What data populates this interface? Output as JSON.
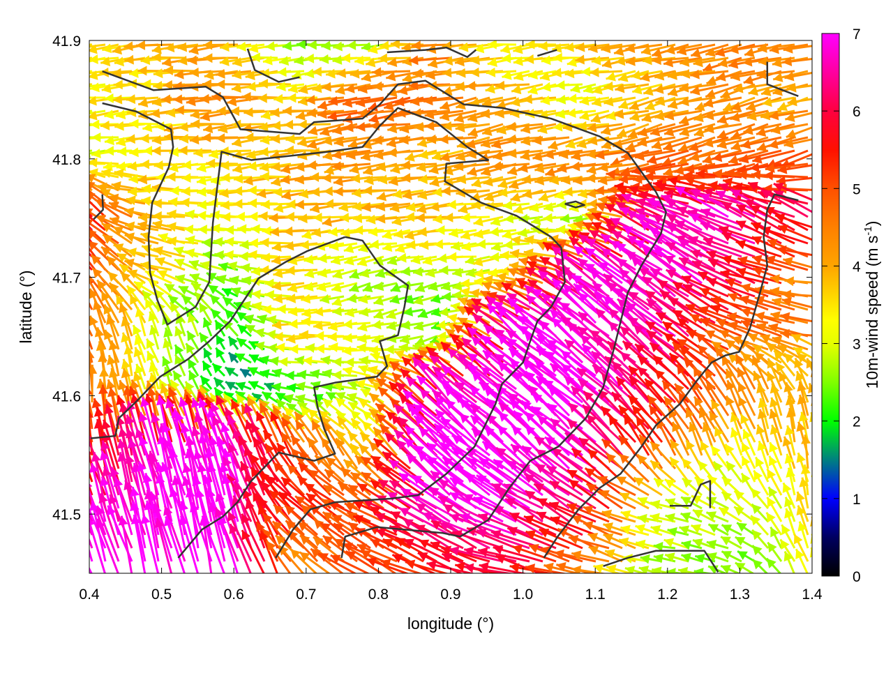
{
  "chart_data": {
    "type": "vector-field",
    "title": "",
    "xlabel": "longitude (°)",
    "ylabel": "latitude (°)",
    "xlim": [
      0.4,
      1.4
    ],
    "ylim": [
      41.45,
      41.9
    ],
    "xticks": [
      "0.4",
      "0.5",
      "0.6",
      "0.7",
      "0.8",
      "0.9",
      "1.0",
      "1.1",
      "1.2",
      "1.3",
      "1.4"
    ],
    "yticks": [
      "41.5",
      "41.6",
      "41.7",
      "41.8",
      "41.9"
    ],
    "colorbar": {
      "label": "10m-wind speed (m s",
      "label_superscript": "-1",
      "label_close": ")",
      "range": [
        0,
        7
      ],
      "ticks": [
        "0",
        "1",
        "2",
        "3",
        "4",
        "5",
        "6",
        "7"
      ],
      "colormap": [
        [
          0,
          "#000000"
        ],
        [
          0.5,
          "#000060"
        ],
        [
          1,
          "#0000ff"
        ],
        [
          1.5,
          "#008080"
        ],
        [
          2,
          "#00ff00"
        ],
        [
          2.5,
          "#80ff00"
        ],
        [
          3,
          "#e6ff00"
        ],
        [
          3.3,
          "#ffff00"
        ],
        [
          4,
          "#ffa500"
        ],
        [
          4.5,
          "#ff8000"
        ],
        [
          5,
          "#ff5000"
        ],
        [
          5.5,
          "#ff1000"
        ],
        [
          6,
          "#ff0040"
        ],
        [
          6.5,
          "#ff00a0"
        ],
        [
          7,
          "#ff00ff"
        ]
      ]
    },
    "wind_field": {
      "lon": [
        0.4,
        0.5,
        0.6,
        0.7,
        0.8,
        0.9,
        1.0,
        1.1,
        1.2,
        1.3,
        1.4
      ],
      "lat": [
        41.9,
        41.85,
        41.8,
        41.75,
        41.7,
        41.65,
        41.6,
        41.55,
        41.5,
        41.45
      ],
      "speed": [
        [
          3.5,
          3.8,
          4.0,
          2.5,
          2.5,
          4.5,
          3.0,
          3.8,
          4.0,
          4.5,
          4.5
        ],
        [
          3.3,
          3.5,
          4.5,
          3.5,
          5.0,
          4.5,
          4.0,
          3.0,
          3.8,
          4.2,
          4.0
        ],
        [
          3.0,
          3.5,
          3.5,
          4.0,
          4.2,
          3.8,
          4.5,
          4.3,
          4.8,
          4.7,
          5.0
        ],
        [
          6.0,
          4.0,
          3.0,
          3.8,
          3.8,
          3.8,
          3.0,
          2.8,
          6.5,
          6.8,
          6.2
        ],
        [
          5.5,
          3.8,
          2.5,
          3.5,
          2.5,
          2.5,
          3.5,
          6.5,
          7.0,
          6.5,
          4.5
        ],
        [
          5.0,
          3.0,
          2.2,
          3.5,
          3.3,
          2.5,
          7.0,
          7.0,
          6.8,
          5.0,
          4.5
        ],
        [
          4.5,
          2.8,
          1.5,
          2.0,
          3.0,
          6.5,
          7.0,
          7.0,
          6.0,
          4.5,
          4.0
        ],
        [
          5.0,
          6.8,
          7.0,
          5.0,
          3.5,
          7.0,
          7.0,
          7.0,
          5.0,
          3.5,
          3.8
        ],
        [
          6.5,
          7.0,
          7.0,
          5.5,
          5.0,
          7.0,
          7.0,
          6.0,
          3.0,
          3.0,
          3.5
        ],
        [
          7.0,
          7.0,
          7.0,
          4.5,
          5.0,
          5.5,
          6.0,
          4.5,
          2.5,
          2.5,
          3.5
        ]
      ],
      "direction_deg": [
        [
          185,
          185,
          185,
          185,
          185,
          185,
          185,
          185,
          190,
          190,
          190
        ],
        [
          185,
          185,
          185,
          185,
          190,
          190,
          190,
          190,
          195,
          195,
          195
        ],
        [
          185,
          185,
          185,
          185,
          190,
          190,
          190,
          190,
          195,
          195,
          195
        ],
        [
          135,
          175,
          180,
          185,
          185,
          185,
          190,
          190,
          155,
          155,
          155
        ],
        [
          125,
          160,
          160,
          185,
          200,
          190,
          185,
          145,
          145,
          155,
          170
        ],
        [
          110,
          110,
          120,
          180,
          185,
          200,
          140,
          140,
          140,
          160,
          170
        ],
        [
          95,
          110,
          150,
          170,
          160,
          135,
          140,
          140,
          135,
          120,
          110
        ],
        [
          100,
          105,
          110,
          120,
          130,
          135,
          140,
          140,
          120,
          110,
          100
        ],
        [
          110,
          105,
          105,
          140,
          150,
          145,
          150,
          150,
          170,
          150,
          100
        ],
        [
          110,
          105,
          105,
          130,
          150,
          160,
          165,
          165,
          170,
          160,
          110
        ]
      ]
    },
    "contour_lines": [
      [
        [
          0.418,
          41.874
        ],
        [
          0.489,
          41.858
        ],
        [
          0.561,
          41.861
        ],
        [
          0.585,
          41.852
        ],
        [
          0.609,
          41.825
        ],
        [
          0.691,
          41.821
        ],
        [
          0.711,
          41.831
        ],
        [
          0.778,
          41.834
        ],
        [
          0.802,
          41.846
        ],
        [
          0.827,
          41.863
        ],
        [
          0.865,
          41.866
        ],
        [
          0.918,
          41.846
        ],
        [
          0.971,
          41.843
        ],
        [
          1.039,
          41.834
        ],
        [
          1.106,
          41.819
        ],
        [
          1.145,
          41.805
        ],
        [
          1.184,
          41.772
        ],
        [
          1.198,
          41.755
        ],
        [
          1.191,
          41.737
        ],
        [
          1.164,
          41.71
        ],
        [
          1.145,
          41.687
        ],
        [
          1.126,
          41.64
        ],
        [
          1.111,
          41.607
        ],
        [
          1.087,
          41.581
        ],
        [
          1.049,
          41.557
        ],
        [
          1.01,
          41.545
        ],
        [
          0.981,
          41.522
        ],
        [
          0.952,
          41.495
        ],
        [
          0.913,
          41.481
        ],
        [
          0.889,
          41.484
        ],
        [
          0.798,
          41.489
        ],
        [
          0.754,
          41.481
        ],
        [
          0.749,
          41.463
        ]
      ],
      [
        [
          0.418,
          41.847
        ],
        [
          0.465,
          41.84
        ],
        [
          0.513,
          41.825
        ],
        [
          0.516,
          41.81
        ],
        [
          0.51,
          41.793
        ],
        [
          0.487,
          41.763
        ],
        [
          0.482,
          41.734
        ],
        [
          0.484,
          41.704
        ],
        [
          0.494,
          41.681
        ],
        [
          0.508,
          41.66
        ],
        [
          0.547,
          41.675
        ],
        [
          0.566,
          41.696
        ],
        [
          0.571,
          41.746
        ],
        [
          0.583,
          41.806
        ],
        [
          0.624,
          41.799
        ],
        [
          0.73,
          41.806
        ],
        [
          0.778,
          41.81
        ],
        [
          0.802,
          41.828
        ],
        [
          0.827,
          41.843
        ],
        [
          0.88,
          41.831
        ],
        [
          0.923,
          41.81
        ],
        [
          0.952,
          41.799
        ],
        [
          0.894,
          41.796
        ],
        [
          0.892,
          41.781
        ],
        [
          0.942,
          41.763
        ],
        [
          0.991,
          41.752
        ],
        [
          1.039,
          41.734
        ],
        [
          1.053,
          41.725
        ],
        [
          1.058,
          41.696
        ],
        [
          1.039,
          41.675
        ],
        [
          1.02,
          41.663
        ],
        [
          1.01,
          41.646
        ],
        [
          1.0,
          41.628
        ],
        [
          0.971,
          41.61
        ],
        [
          0.962,
          41.593
        ],
        [
          0.933,
          41.557
        ],
        [
          0.894,
          41.534
        ],
        [
          0.855,
          41.516
        ],
        [
          0.817,
          41.513
        ],
        [
          0.74,
          41.51
        ],
        [
          0.706,
          41.504
        ],
        [
          0.682,
          41.487
        ],
        [
          0.658,
          41.463
        ]
      ],
      [
        [
          0.754,
          41.734
        ],
        [
          0.701,
          41.722
        ],
        [
          0.672,
          41.713
        ],
        [
          0.634,
          41.699
        ],
        [
          0.595,
          41.663
        ],
        [
          0.566,
          41.646
        ],
        [
          0.537,
          41.631
        ],
        [
          0.498,
          41.616
        ],
        [
          0.465,
          41.595
        ],
        [
          0.441,
          41.581
        ],
        [
          0.436,
          41.566
        ],
        [
          0.402,
          41.564
        ]
      ],
      [
        [
          0.754,
          41.734
        ],
        [
          0.778,
          41.731
        ],
        [
          0.802,
          41.71
        ],
        [
          0.841,
          41.693
        ],
        [
          0.836,
          41.675
        ],
        [
          0.827,
          41.651
        ],
        [
          0.802,
          41.646
        ],
        [
          0.812,
          41.625
        ],
        [
          0.798,
          41.616
        ],
        [
          0.74,
          41.611
        ],
        [
          0.711,
          41.607
        ],
        [
          0.716,
          41.59
        ],
        [
          0.725,
          41.572
        ],
        [
          0.74,
          41.551
        ],
        [
          0.711,
          41.545
        ],
        [
          0.662,
          41.552
        ],
        [
          0.643,
          41.54
        ],
        [
          0.624,
          41.528
        ],
        [
          0.605,
          41.51
        ],
        [
          0.585,
          41.498
        ],
        [
          0.556,
          41.487
        ],
        [
          0.523,
          41.463
        ]
      ],
      [
        [
          1.381,
          41.765
        ],
        [
          1.348,
          41.77
        ],
        [
          1.338,
          41.757
        ],
        [
          1.333,
          41.734
        ],
        [
          1.338,
          41.71
        ],
        [
          1.328,
          41.687
        ],
        [
          1.314,
          41.657
        ],
        [
          1.299,
          41.637
        ],
        [
          1.28,
          41.634
        ],
        [
          1.261,
          41.628
        ],
        [
          1.241,
          41.613
        ],
        [
          1.217,
          41.593
        ],
        [
          1.184,
          41.575
        ],
        [
          1.164,
          41.557
        ],
        [
          1.135,
          41.534
        ],
        [
          1.106,
          41.522
        ],
        [
          1.077,
          41.504
        ],
        [
          1.048,
          41.481
        ],
        [
          1.029,
          41.463
        ]
      ],
      [
        [
          1.111,
          41.456
        ],
        [
          1.145,
          41.463
        ],
        [
          1.184,
          41.469
        ],
        [
          1.251,
          41.469
        ],
        [
          1.27,
          41.451
        ]
      ],
      [
        [
          1.203,
          41.507
        ],
        [
          1.232,
          41.507
        ],
        [
          1.246,
          41.525
        ],
        [
          1.259,
          41.528
        ],
        [
          1.259,
          41.505
        ]
      ],
      [
        [
          0.619,
          41.893
        ],
        [
          0.629,
          41.875
        ],
        [
          0.662,
          41.865
        ],
        [
          0.691,
          41.869
        ]
      ],
      [
        [
          0.812,
          41.89
        ],
        [
          0.865,
          41.892
        ],
        [
          0.894,
          41.894
        ],
        [
          0.923,
          41.886
        ],
        [
          0.935,
          41.892
        ]
      ],
      [
        [
          1.338,
          41.882
        ],
        [
          1.338,
          41.863
        ],
        [
          1.381,
          41.853
        ]
      ],
      [
        [
          1.02,
          41.887
        ],
        [
          1.047,
          41.892
        ]
      ],
      [
        [
          1.058,
          41.762
        ],
        [
          1.073,
          41.764
        ],
        [
          1.085,
          41.761
        ],
        [
          1.073,
          41.759
        ],
        [
          1.058,
          41.762
        ]
      ],
      [
        [
          0.418,
          41.77
        ],
        [
          0.419,
          41.757
        ],
        [
          0.406,
          41.749
        ]
      ]
    ],
    "contour_color": "#333333",
    "grid": false
  }
}
